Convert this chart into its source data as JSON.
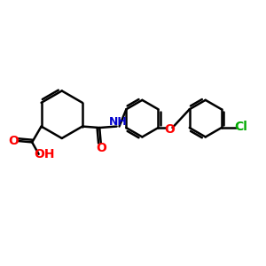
{
  "bg_color": "#ffffff",
  "bond_color": "#000000",
  "o_color": "#ff0000",
  "n_color": "#0000cc",
  "cl_color": "#00aa00",
  "lw": 1.8,
  "figsize": [
    3.0,
    3.0
  ],
  "dpi": 100,
  "xlim": [
    0,
    10
  ],
  "ylim": [
    0,
    10
  ]
}
